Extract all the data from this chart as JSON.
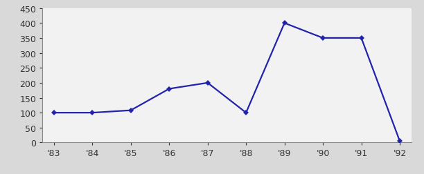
{
  "years": [
    "'83",
    "'84",
    "'85",
    "'86",
    "'87",
    "'88",
    "'89",
    "'90",
    "'91",
    "'92"
  ],
  "values": [
    100,
    100,
    108,
    180,
    200,
    100,
    400,
    350,
    350,
    5
  ],
  "line_color": "#2222aa",
  "marker": "D",
  "marker_size": 4.5,
  "marker_facecolor": "#2222aa",
  "ylim": [
    0,
    450
  ],
  "yticks": [
    0,
    50,
    100,
    150,
    200,
    250,
    300,
    350,
    400,
    450
  ],
  "outer_bg_color": "#d9d9d9",
  "plot_bg_color": "#f2f2f2",
  "linewidth": 1.6,
  "tick_labelsize": 9,
  "spine_color": "#888888"
}
